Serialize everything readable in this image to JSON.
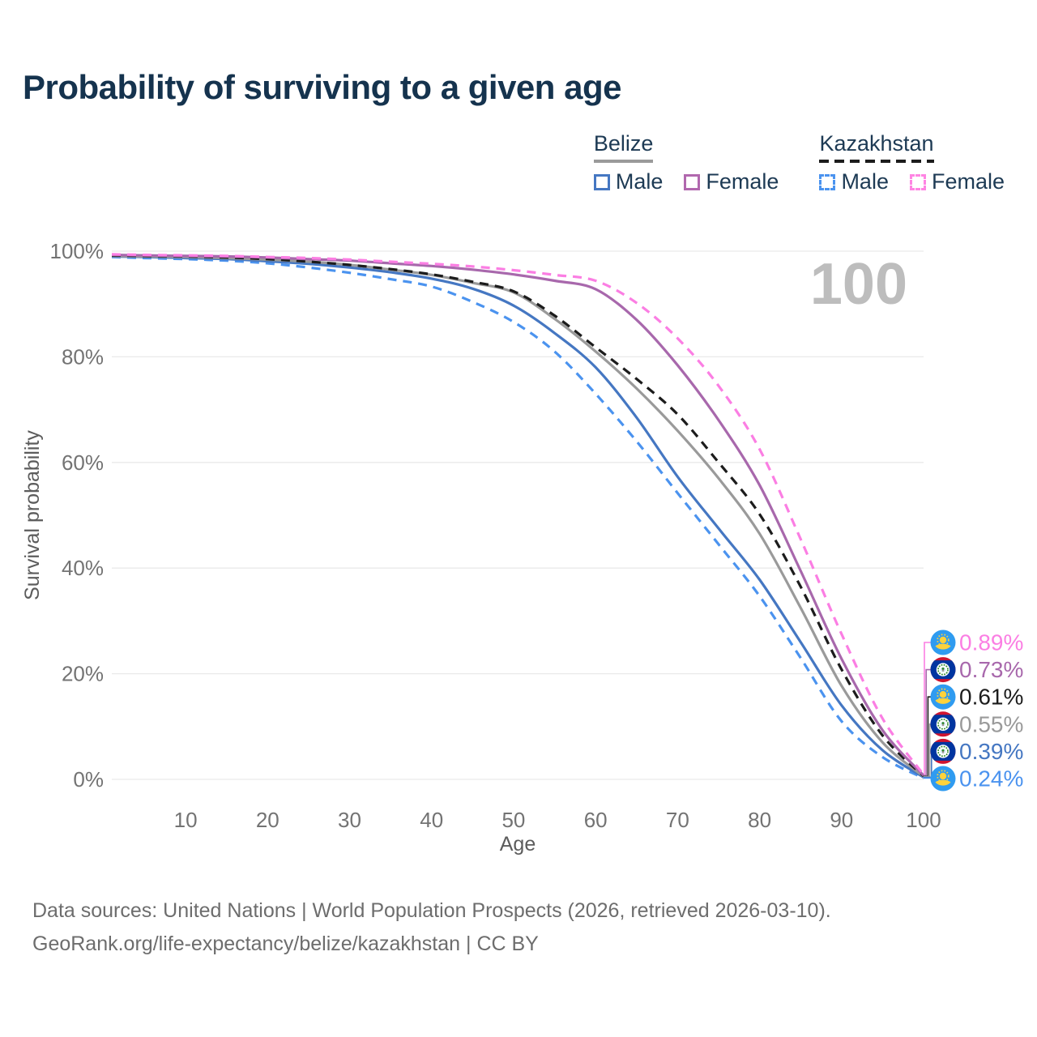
{
  "title": "Probability of surviving to a given age",
  "legend": {
    "groups": [
      {
        "title": "Belize",
        "line_color": "#9a9a9a",
        "line_style": "solid",
        "items": [
          {
            "label": "Male",
            "color": "#4577c2",
            "style": "solid"
          },
          {
            "label": "Female",
            "color": "#b168ae",
            "style": "solid"
          }
        ]
      },
      {
        "title": "Kazakhstan",
        "line_color": "#1c1c1c",
        "line_style": "dashed",
        "items": [
          {
            "label": "Male",
            "color": "#4b93ef",
            "style": "dashed"
          },
          {
            "label": "Female",
            "color": "#ff85e3",
            "style": "dashed"
          }
        ]
      }
    ]
  },
  "chart_data": {
    "type": "line",
    "title": "Probability of surviving to a given age",
    "xlabel": "Age",
    "ylabel": "Survival probability",
    "xlim": [
      1,
      100
    ],
    "ylim": [
      0,
      100
    ],
    "grid": "horizontal",
    "age_indicator": "100",
    "xticks": [
      10,
      20,
      30,
      40,
      50,
      60,
      70,
      80,
      90,
      100
    ],
    "yticks": [
      {
        "value": 0,
        "label": "0%"
      },
      {
        "value": 20,
        "label": "20%"
      },
      {
        "value": 40,
        "label": "40%"
      },
      {
        "value": 60,
        "label": "60%"
      },
      {
        "value": 80,
        "label": "80%"
      },
      {
        "value": 100,
        "label": "100%"
      }
    ],
    "x": [
      1,
      5,
      10,
      15,
      20,
      25,
      30,
      35,
      40,
      45,
      50,
      55,
      60,
      65,
      70,
      75,
      80,
      85,
      90,
      95,
      100
    ],
    "series": [
      {
        "name": "Kazakhstan Female",
        "country": "Kazakhstan",
        "sex": "Female",
        "flag": "kazakhstan",
        "color": "#fb7ee3",
        "line_style": "dashed",
        "end_label": "0.89%",
        "values": [
          99.4,
          99.3,
          99.2,
          99.1,
          98.9,
          98.7,
          98.4,
          98.0,
          97.6,
          97.1,
          96.4,
          95.5,
          94.4,
          90.2,
          83.5,
          74.5,
          62.5,
          45.5,
          27.5,
          11.5,
          0.89
        ]
      },
      {
        "name": "Belize Female",
        "country": "Belize",
        "sex": "Female",
        "flag": "belize",
        "color": "#a868ac",
        "line_style": "solid",
        "end_label": "0.73%",
        "values": [
          99.3,
          99.2,
          99.1,
          99.0,
          98.8,
          98.5,
          98.2,
          97.7,
          97.2,
          96.5,
          95.6,
          94.4,
          92.8,
          87.0,
          78.4,
          68.0,
          55.7,
          39.5,
          22.8,
          9.3,
          0.73
        ]
      },
      {
        "name": "Kazakhstan",
        "country": "Kazakhstan",
        "sex": "Both",
        "flag": "kazakhstan",
        "color": "#1c1c1c",
        "line_style": "dashed",
        "end_label": "0.61%",
        "values": [
          99.2,
          99.1,
          99.0,
          98.8,
          98.5,
          98.0,
          97.4,
          96.6,
          95.6,
          94.2,
          92.4,
          87.8,
          81.8,
          75.8,
          69.1,
          60.0,
          50.2,
          36.5,
          20.8,
          8.3,
          0.61
        ]
      },
      {
        "name": "Belize",
        "country": "Belize",
        "sex": "Both",
        "flag": "belize",
        "color": "#9a9a9a",
        "line_style": "solid",
        "end_label": "0.55%",
        "values": [
          99.1,
          99.0,
          98.9,
          98.7,
          98.4,
          98.0,
          97.4,
          96.5,
          95.5,
          94.0,
          92.2,
          87.2,
          81.0,
          74.0,
          66.0,
          57.0,
          46.5,
          32.5,
          17.7,
          7.0,
          0.55
        ]
      },
      {
        "name": "Belize Male",
        "country": "Belize",
        "sex": "Male",
        "flag": "belize",
        "color": "#4577c2",
        "line_style": "solid",
        "end_label": "0.39%",
        "values": [
          99.0,
          98.9,
          98.7,
          98.5,
          98.1,
          97.6,
          96.9,
          96.0,
          94.8,
          92.9,
          89.7,
          84.5,
          78.0,
          68.5,
          57.3,
          47.5,
          37.8,
          26.0,
          14.0,
          5.5,
          0.39
        ]
      },
      {
        "name": "Kazakhstan Male",
        "country": "Kazakhstan",
        "sex": "Male",
        "flag": "kazakhstan",
        "color": "#4b93ef",
        "line_style": "dashed",
        "end_label": "0.24%",
        "values": [
          98.9,
          98.7,
          98.5,
          98.2,
          97.7,
          96.9,
          95.9,
          94.7,
          93.3,
          90.4,
          86.6,
          81.0,
          73.0,
          64.0,
          54.2,
          44.5,
          34.7,
          23.0,
          11.0,
          4.2,
          0.24
        ]
      }
    ]
  },
  "footer": {
    "line1": "Data sources: United Nations | World Population Prospects (2026, retrieved 2026-03-10).",
    "line2": "GeoRank.org/life-expectancy/belize/kazakhstan | CC BY"
  }
}
